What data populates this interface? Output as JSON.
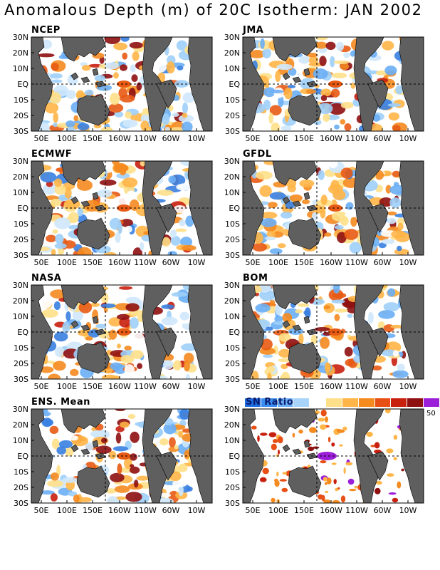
{
  "title": "Anomalous Depth (m) of 20C Isotherm: JAN 2002",
  "lat_labels": [
    "30N",
    "20N",
    "10N",
    "EQ",
    "10S",
    "20S",
    "30S"
  ],
  "lon_labels": [
    "50E",
    "100E",
    "150E",
    "160W",
    "110W",
    "60W",
    "10W"
  ],
  "panels": [
    {
      "name": "NCEP",
      "seed": 11
    },
    {
      "name": "JMA",
      "seed": 23
    },
    {
      "name": "ECMWF",
      "seed": 37
    },
    {
      "name": "GFDL",
      "seed": 41
    },
    {
      "name": "NASA",
      "seed": 53
    },
    {
      "name": "BOM",
      "seed": 67
    },
    {
      "name": "ENS. Mean",
      "seed": 79
    }
  ],
  "sn_panel": {
    "label": "SN Ratio",
    "max_label": "50",
    "seed": 97
  },
  "colors": {
    "land": "#5f5f5f",
    "anomaly_scale": [
      "#3a7fe0",
      "#6aaef5",
      "#9fcffa",
      "#cfe8fc",
      "#ffffff",
      "#ffe08a",
      "#ffb547",
      "#f58a1f",
      "#e85a14",
      "#c8200f",
      "#8f1010",
      "#9b1fd8"
    ],
    "sn_scale": [
      "#1e6ee0",
      "#3b8ef0",
      "#6aaef5",
      "#a8d4fb",
      "#ffffff",
      "#ffe08a",
      "#ffb547",
      "#f58a1f",
      "#e84f14",
      "#c8200f",
      "#8f1010",
      "#9b1fd8"
    ]
  }
}
